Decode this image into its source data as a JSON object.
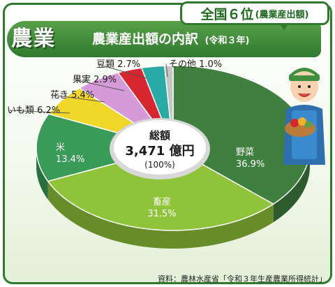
{
  "badge": {
    "rank": "全国６位",
    "qualifier": "(農業産出額)"
  },
  "category": "農業",
  "title": {
    "main": "農業産出額の内訳",
    "sub": "(令和３年)"
  },
  "center": {
    "label": "総額",
    "value": "3,471 億円",
    "pct": "(100%)"
  },
  "source": "資料：農林水産省「令和３年生産農業所得統計」",
  "chart_data": {
    "type": "pie",
    "title": "農業産出額の内訳",
    "subtitle": "(令和３年)",
    "total_label": "総額",
    "total_value": 3471,
    "total_unit": "億円",
    "slices": [
      {
        "label": "野菜",
        "value": 36.9,
        "pct_text": "36.9%",
        "color": "#3f7f3f"
      },
      {
        "label": "畜産",
        "value": 31.5,
        "pct_text": "31.5%",
        "color": "#8fc43a"
      },
      {
        "label": "米",
        "value": 13.4,
        "pct_text": "13.4%",
        "color": "#3a9a58"
      },
      {
        "label": "いも類",
        "value": 6.2,
        "pct_text": "6.2%",
        "color": "#f1d62a"
      },
      {
        "label": "花き",
        "value": 5.4,
        "pct_text": "5.4%",
        "color": "#d69ad9"
      },
      {
        "label": "果実",
        "value": 2.9,
        "pct_text": "2.9%",
        "color": "#d6262f"
      },
      {
        "label": "豆類",
        "value": 2.7,
        "pct_text": "2.7%",
        "color": "#2aaaa6"
      },
      {
        "label": "その他",
        "value": 1.0,
        "pct_text": "1.0%",
        "color": "#c2c7c2"
      }
    ]
  }
}
